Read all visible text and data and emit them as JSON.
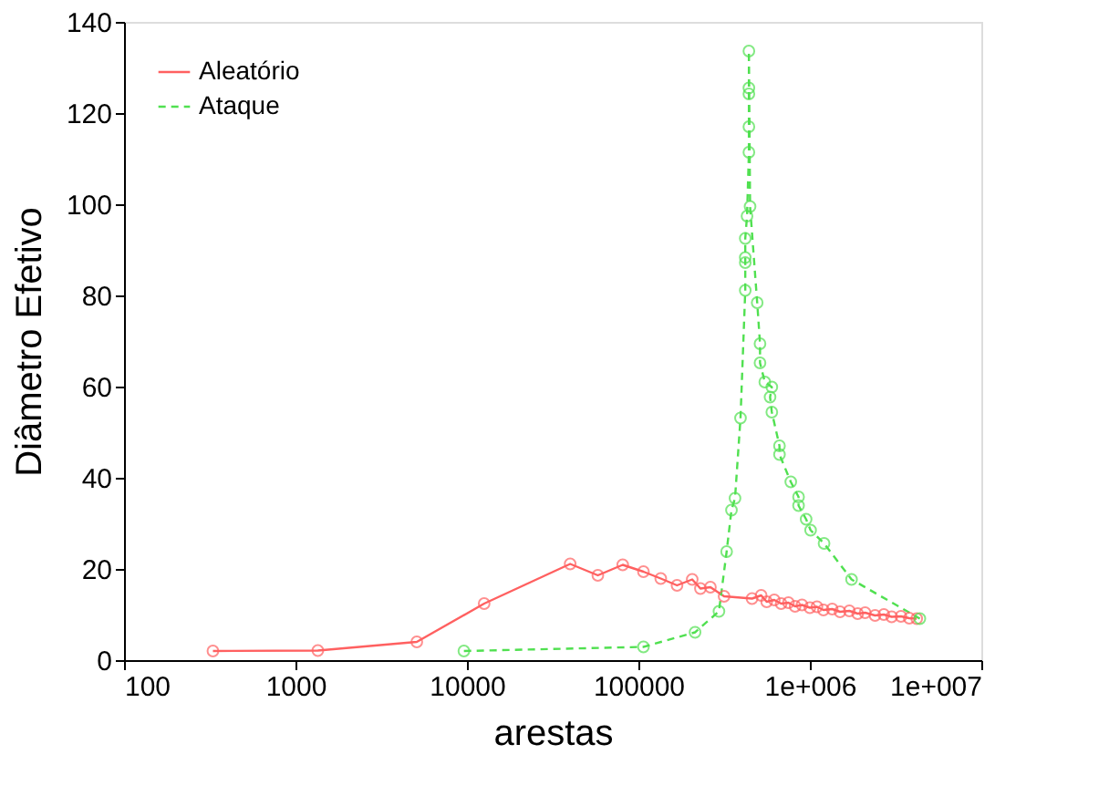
{
  "chart_data": {
    "type": "line",
    "xlabel": "arestas",
    "ylabel": "Diâmetro Efetivo",
    "log": "x",
    "xlim": [
      100,
      10000000
    ],
    "ylim": [
      0,
      140
    ],
    "xticks": [
      100,
      1000,
      10000,
      100000,
      {
        "value": 1000000,
        "label": "1e+006"
      },
      {
        "value": 10000000,
        "label": "1e+007"
      }
    ],
    "yticks": [
      0,
      20,
      40,
      60,
      80,
      100,
      120,
      140
    ],
    "grid": false,
    "legend": "top left",
    "marker": "circle",
    "series": [
      {
        "name": "Aleatório",
        "color": "#ff6060",
        "line_style": "solid",
        "x": [
          330,
          1350,
          5100,
          12600,
          40000,
          58000,
          81000,
          107000,
          135000,
          168000,
          206000,
          230000,
          263000,
          316000,
          460000,
          520000,
          560000,
          620000,
          680000,
          750000,
          820000,
          900000,
          1000000,
          1100000,
          1200000,
          1350000,
          1500000,
          1700000,
          1900000,
          2100000,
          2400000,
          2700000,
          3000000,
          3400000,
          3800000,
          4200000
        ],
        "values": [
          2,
          2.1,
          4,
          12.4,
          21.1,
          18.6,
          20.9,
          19.4,
          17.9,
          16.4,
          17.7,
          15.7,
          16,
          14,
          13.5,
          14.2,
          12.8,
          13.2,
          12.4,
          12.6,
          11.8,
          12.1,
          11.5,
          11.7,
          11,
          11.2,
          10.6,
          10.8,
          10.2,
          10.4,
          9.8,
          10,
          9.5,
          9.6,
          9.2,
          9.1
        ]
      },
      {
        "name": "Ataque",
        "color": "#50e050",
        "line_style": "dashed",
        "x": [
          9600,
          107000,
          214000,
          295000,
          327000,
          349000,
          366000,
          394000,
          420000,
          420000,
          420000,
          420000,
          430000,
          441000,
          441000,
          441000,
          441000,
          441000,
          448000,
          493000,
          512000,
          512000,
          546000,
          600000,
          586000,
          600000,
          665000,
          665000,
          774000,
          859000,
          859000,
          951000,
          1010000,
          1210000,
          1750000,
          4380000
        ],
        "values": [
          2,
          2.9,
          6.1,
          10.7,
          23.8,
          32.9,
          35.5,
          53.1,
          81.1,
          87.2,
          88.3,
          92.5,
          97.4,
          111.4,
          117,
          124.2,
          125.5,
          133.6,
          99.5,
          78.4,
          69.4,
          65.2,
          61,
          59.9,
          57.7,
          54.4,
          47,
          45.1,
          39.1,
          35.8,
          33.9,
          30.9,
          28.5,
          25.6,
          17.7,
          9.1
        ]
      }
    ]
  }
}
